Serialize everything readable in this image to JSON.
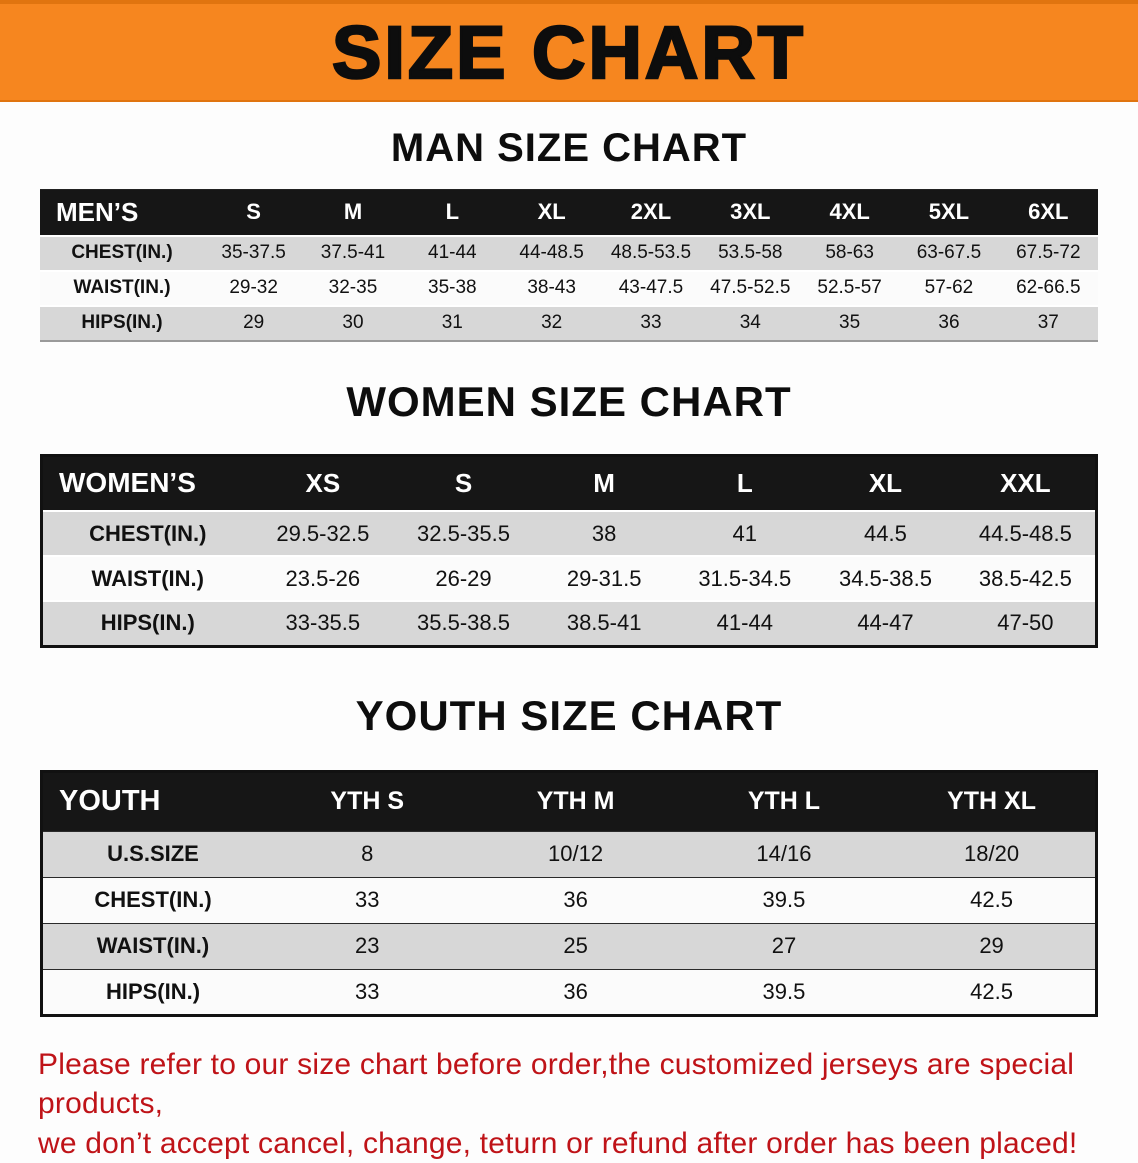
{
  "banner": {
    "title": "SIZE CHART"
  },
  "colors": {
    "banner_orange": "#f6861f",
    "table_header_black": "#161616",
    "row_gray": "#d7d7d7",
    "disclaimer_red": "#bf1318"
  },
  "sections": [
    {
      "heading": "MAN SIZE CHART",
      "table": {
        "label": "MEN’S",
        "columns": [
          "S",
          "M",
          "L",
          "XL",
          "2XL",
          "3XL",
          "4XL",
          "5XL",
          "6XL"
        ],
        "rows": [
          {
            "label": "CHEST(IN.)",
            "values": [
              "35-37.5",
              "37.5-41",
              "41-44",
              "44-48.5",
              "48.5-53.5",
              "53.5-58",
              "58-63",
              "63-67.5",
              "67.5-72"
            ]
          },
          {
            "label": "WAIST(IN.)",
            "values": [
              "29-32",
              "32-35",
              "35-38",
              "38-43",
              "43-47.5",
              "47.5-52.5",
              "52.5-57",
              "57-62",
              "62-66.5"
            ]
          },
          {
            "label": "HIPS(IN.)",
            "values": [
              "29",
              "30",
              "31",
              "32",
              "33",
              "34",
              "35",
              "36",
              "37"
            ]
          }
        ]
      }
    },
    {
      "heading": "WOMEN SIZE CHART",
      "table": {
        "label": "WOMEN’S",
        "columns": [
          "XS",
          "S",
          "M",
          "L",
          "XL",
          "XXL"
        ],
        "rows": [
          {
            "label": "CHEST(IN.)",
            "values": [
              "29.5-32.5",
              "32.5-35.5",
              "38",
              "41",
              "44.5",
              "44.5-48.5"
            ]
          },
          {
            "label": "WAIST(IN.)",
            "values": [
              "23.5-26",
              "26-29",
              "29-31.5",
              "31.5-34.5",
              "34.5-38.5",
              "38.5-42.5"
            ]
          },
          {
            "label": "HIPS(IN.)",
            "values": [
              "33-35.5",
              "35.5-38.5",
              "38.5-41",
              "41-44",
              "44-47",
              "47-50"
            ]
          }
        ]
      }
    },
    {
      "heading": "YOUTH SIZE CHART",
      "table": {
        "label": "YOUTH",
        "columns": [
          "YTH S",
          "YTH M",
          "YTH L",
          "YTH XL"
        ],
        "rows": [
          {
            "label": "U.S.SIZE",
            "values": [
              "8",
              "10/12",
              "14/16",
              "18/20"
            ]
          },
          {
            "label": "CHEST(IN.)",
            "values": [
              "33",
              "36",
              "39.5",
              "42.5"
            ]
          },
          {
            "label": "WAIST(IN.)",
            "values": [
              "23",
              "25",
              "27",
              "29"
            ]
          },
          {
            "label": "HIPS(IN.)",
            "values": [
              "33",
              "36",
              "39.5",
              "42.5"
            ]
          }
        ]
      }
    }
  ],
  "disclaimer": {
    "line1": "Please refer to our size chart before order,the customized jerseys are special products,",
    "line2": "we don’t accept cancel, change, teturn or refund after order has been placed!"
  }
}
